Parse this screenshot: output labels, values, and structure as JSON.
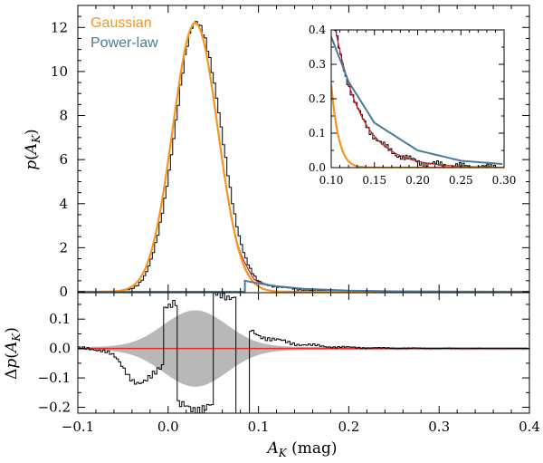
{
  "chart_data": [
    {
      "type": "histogram+line",
      "panel": "main",
      "ylabel": "p(A_K)",
      "xlim": [
        -0.1,
        0.4
      ],
      "ylim": [
        0,
        13
      ],
      "yticks": [
        "0",
        "2",
        "4",
        "6",
        "8",
        "10",
        "12"
      ],
      "legend_position": "top-left",
      "legend": [
        {
          "name": "Gaussian",
          "color": "#f7941d"
        },
        {
          "name": "Power-law",
          "color": "#4a7a9a"
        }
      ],
      "series": [
        {
          "name": "Gaussian",
          "color": "#f7941d",
          "mean": 0.03,
          "sigma": 0.025,
          "peak": 12.2
        },
        {
          "name": "Power-law",
          "color": "#4a7a9a",
          "x": [
            0.085,
            0.1,
            0.12,
            0.15,
            0.2,
            0.25,
            0.3,
            0.4
          ],
          "y": [
            0.5,
            0.38,
            0.25,
            0.13,
            0.05,
            0.02,
            0.01,
            0.0
          ]
        },
        {
          "name": "histogram",
          "color": "#000000",
          "peak_x": 0.03,
          "peak_y": 12.25
        }
      ]
    },
    {
      "type": "residual",
      "panel": "bottom",
      "xlabel": "A_K (mag)",
      "ylabel": "Δp(A_K)",
      "xlim": [
        -0.1,
        0.4
      ],
      "ylim": [
        -0.22,
        0.19
      ],
      "xticks": [
        "−0.1",
        "0.0",
        "0.1",
        "0.2",
        "0.3",
        "0.4"
      ],
      "yticks": [
        "−0.2",
        "−0.1",
        "0.0",
        "0.1"
      ],
      "zero_line_color": "#e8282a",
      "band_color": "#b8b8b8",
      "band_max": 0.125
    },
    {
      "type": "histogram+line",
      "panel": "inset",
      "xlim": [
        0.1,
        0.3
      ],
      "ylim": [
        0,
        0.4
      ],
      "xticks": [
        "0.10",
        "0.15",
        "0.20",
        "0.25",
        "0.30"
      ],
      "yticks": [
        "0.0",
        "0.1",
        "0.2",
        "0.3",
        "0.4"
      ]
    }
  ]
}
